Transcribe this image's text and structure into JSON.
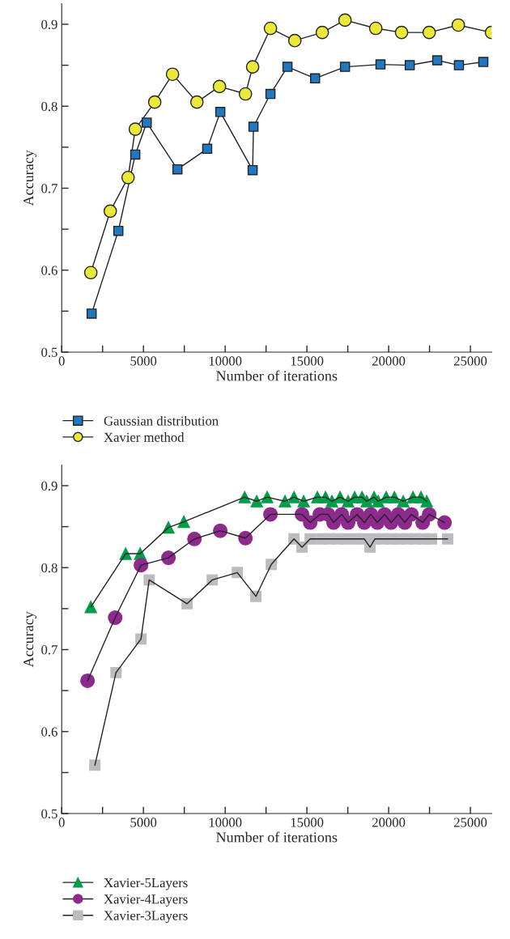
{
  "chart_data": [
    {
      "type": "line",
      "xlabel": "Number of iterations",
      "ylabel": "Accuracy",
      "xlim": [
        0,
        26300
      ],
      "ylim": [
        0.5,
        0.925
      ],
      "xticks": [
        0,
        {
          "value": 2500,
          "label": null
        },
        5000,
        {
          "value": 7500,
          "label": null
        },
        10000,
        {
          "value": 12500,
          "label": null
        },
        15000,
        {
          "value": 17500,
          "label": null
        },
        20000,
        {
          "value": 22500,
          "label": null
        },
        25000
      ],
      "yticks": [
        0.5,
        {
          "value": 0.55,
          "label": null
        },
        0.6,
        {
          "value": 0.65,
          "label": null
        },
        0.7,
        {
          "value": 0.75,
          "label": null
        },
        0.8,
        {
          "value": 0.85,
          "label": null
        },
        0.9
      ],
      "legend": "bottom left",
      "grid": false,
      "series": [
        {
          "name": "Gaussian distribution",
          "color": "#1f78c1",
          "marker": "square",
          "x": [
            1830,
            3465,
            4500,
            5200,
            7080,
            8900,
            9700,
            11680,
            11730,
            12770,
            13810,
            15500,
            17330,
            19500,
            21290,
            22970,
            24300,
            25790
          ],
          "values": [
            0.547,
            0.648,
            0.741,
            0.78,
            0.723,
            0.748,
            0.793,
            0.722,
            0.775,
            0.815,
            0.848,
            0.834,
            0.848,
            0.851,
            0.85,
            0.856,
            0.85,
            0.854
          ]
        },
        {
          "name": "Xavier method",
          "color": "#ebe83a",
          "marker": "circle",
          "x": [
            1780,
            2970,
            4060,
            4500,
            5690,
            6780,
            8270,
            9650,
            11240,
            11680,
            12770,
            14260,
            15940,
            17330,
            19210,
            20790,
            22480,
            24260,
            26290
          ],
          "values": [
            0.597,
            0.672,
            0.713,
            0.772,
            0.805,
            0.839,
            0.805,
            0.824,
            0.815,
            0.848,
            0.895,
            0.88,
            0.89,
            0.905,
            0.895,
            0.89,
            0.89,
            0.899,
            0.89
          ]
        }
      ]
    },
    {
      "type": "line",
      "xlabel": "Number of iterations",
      "ylabel": "Accuracy",
      "xlim": [
        0,
        26300
      ],
      "ylim": [
        0.5,
        0.925
      ],
      "xticks": [
        0,
        {
          "value": 2500,
          "label": null
        },
        5000,
        {
          "value": 7500,
          "label": null
        },
        10000,
        {
          "value": 12500,
          "label": null
        },
        15000,
        {
          "value": 17500,
          "label": null
        },
        20000,
        {
          "value": 22500,
          "label": null
        },
        25000
      ],
      "yticks": [
        0.5,
        {
          "value": 0.55,
          "label": null
        },
        0.6,
        {
          "value": 0.65,
          "label": null
        },
        0.7,
        {
          "value": 0.75,
          "label": null
        },
        0.8,
        {
          "value": 0.85,
          "label": null
        },
        0.9
      ],
      "legend": "bottom left",
      "grid": false,
      "series": [
        {
          "name": "Xavier-5Layers",
          "color": "#009e49",
          "marker": "triangle",
          "x": [
            1780,
            3910,
            4800,
            6530,
            7470,
            11190,
            11930,
            12570,
            13660,
            14210,
            14800,
            15640,
            16140,
            16530,
            17030,
            17520,
            17920,
            18370,
            18660,
            19110,
            19360,
            19850,
            20350,
            20890,
            21490,
            21980,
            22330
          ],
          "values": [
            0.752,
            0.817,
            0.817,
            0.849,
            0.856,
            0.886,
            0.881,
            0.886,
            0.881,
            0.886,
            0.881,
            0.886,
            0.886,
            0.881,
            0.886,
            0.881,
            0.886,
            0.886,
            0.881,
            0.886,
            0.881,
            0.886,
            0.886,
            0.881,
            0.886,
            0.886,
            0.881
          ]
        },
        {
          "name": "Xavier-4Layers",
          "color": "#8e2a8e",
          "marker": "circle",
          "x": [
            1580,
            3270,
            4850,
            6530,
            8120,
            9700,
            11240,
            12770,
            14700,
            15200,
            15790,
            16290,
            16630,
            17130,
            17520,
            18070,
            18510,
            18910,
            19310,
            19750,
            20150,
            20590,
            20990,
            21390,
            21730,
            22080,
            22480,
            22820,
            23420
          ],
          "values": [
            0.662,
            0.739,
            0.803,
            0.812,
            0.835,
            0.845,
            0.836,
            0.865,
            0.865,
            0.855,
            0.865,
            0.865,
            0.855,
            0.865,
            0.855,
            0.865,
            0.855,
            0.865,
            0.855,
            0.865,
            0.855,
            0.865,
            0.855,
            0.865,
            null,
            0.855,
            0.865,
            null,
            0.855
          ]
        },
        {
          "name": "Xavier-3Layers",
          "color": "#bbbcc0",
          "marker": "square",
          "x": [
            2030,
            3320,
            4850,
            5350,
            7670,
            9210,
            10740,
            11880,
            12820,
            14210,
            14700,
            15200,
            15890,
            16390,
            16880,
            17380,
            18020,
            18510,
            18860,
            19160,
            19650,
            20150,
            20640,
            21140,
            21630,
            22130,
            22620,
            23610
          ],
          "values": [
            0.559,
            0.672,
            0.713,
            0.785,
            0.756,
            0.785,
            0.794,
            0.765,
            0.804,
            0.835,
            0.825,
            0.835,
            0.835,
            0.835,
            0.835,
            0.835,
            0.835,
            0.835,
            0.825,
            0.835,
            0.835,
            0.835,
            0.835,
            0.835,
            0.835,
            0.835,
            0.835,
            0.835
          ]
        }
      ]
    }
  ]
}
